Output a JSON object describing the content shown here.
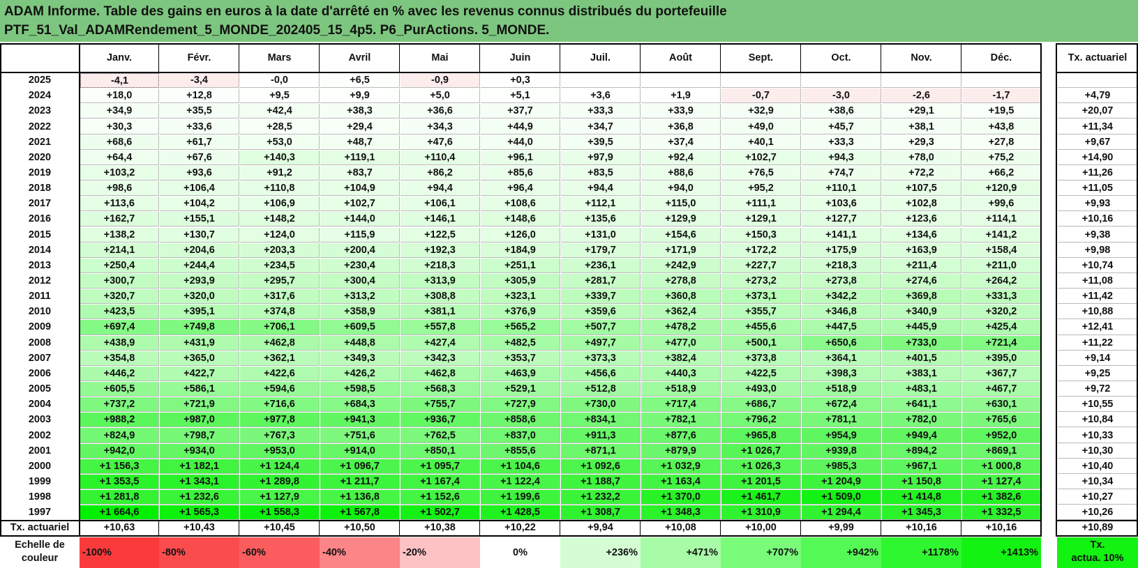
{
  "title_line1": "ADAM Informe. Table des gains en euros à la date d'arrêté en % avec les revenus connus distribués du portefeuille",
  "title_line2": "PTF_51_Val_ADAMRendement_5_MONDE_202405_15_4p5. P6_PurActions. 5_MONDE.",
  "months": [
    "Janv.",
    "Févr.",
    "Mars",
    "Avril",
    "Mai",
    "Juin",
    "Juil.",
    "Août",
    "Sept.",
    "Oct.",
    "Nov.",
    "Déc."
  ],
  "tx_header": "Tx. actuariel",
  "rows": [
    {
      "year": "2025",
      "values": [
        "-4,1",
        "-3,4",
        "-0,0",
        "+6,5",
        "-0,9",
        "+0,3",
        "",
        "",
        "",
        "",
        "",
        ""
      ],
      "tx": ""
    },
    {
      "year": "2024",
      "values": [
        "+18,0",
        "+12,8",
        "+9,5",
        "+9,9",
        "+5,0",
        "+5,1",
        "+3,6",
        "+1,9",
        "-0,7",
        "-3,0",
        "-2,6",
        "-1,7"
      ],
      "tx": "+4,79"
    },
    {
      "year": "2023",
      "values": [
        "+34,9",
        "+35,5",
        "+42,4",
        "+38,3",
        "+36,6",
        "+37,7",
        "+33,3",
        "+33,9",
        "+32,9",
        "+38,6",
        "+29,1",
        "+19,5"
      ],
      "tx": "+20,07"
    },
    {
      "year": "2022",
      "values": [
        "+30,3",
        "+33,6",
        "+28,5",
        "+29,4",
        "+34,3",
        "+44,9",
        "+34,7",
        "+36,8",
        "+49,0",
        "+45,7",
        "+38,1",
        "+43,8"
      ],
      "tx": "+11,34"
    },
    {
      "year": "2021",
      "values": [
        "+68,6",
        "+61,7",
        "+53,0",
        "+48,7",
        "+47,6",
        "+44,0",
        "+39,5",
        "+37,4",
        "+40,1",
        "+33,3",
        "+29,3",
        "+27,8"
      ],
      "tx": "+9,67"
    },
    {
      "year": "2020",
      "values": [
        "+64,4",
        "+67,6",
        "+140,3",
        "+119,1",
        "+110,4",
        "+96,1",
        "+97,9",
        "+92,4",
        "+102,7",
        "+94,3",
        "+78,0",
        "+75,2"
      ],
      "tx": "+14,90"
    },
    {
      "year": "2019",
      "values": [
        "+103,2",
        "+93,6",
        "+91,2",
        "+83,7",
        "+86,2",
        "+85,6",
        "+83,5",
        "+88,6",
        "+76,5",
        "+74,7",
        "+72,2",
        "+66,2"
      ],
      "tx": "+11,26"
    },
    {
      "year": "2018",
      "values": [
        "+98,6",
        "+106,4",
        "+110,8",
        "+104,9",
        "+94,4",
        "+96,4",
        "+94,4",
        "+94,0",
        "+95,2",
        "+110,1",
        "+107,5",
        "+120,9"
      ],
      "tx": "+11,05"
    },
    {
      "year": "2017",
      "values": [
        "+113,6",
        "+104,2",
        "+106,9",
        "+102,7",
        "+106,1",
        "+108,6",
        "+112,1",
        "+115,0",
        "+111,1",
        "+103,6",
        "+102,8",
        "+99,6"
      ],
      "tx": "+9,93"
    },
    {
      "year": "2016",
      "values": [
        "+162,7",
        "+155,1",
        "+148,2",
        "+144,0",
        "+146,1",
        "+148,6",
        "+135,6",
        "+129,9",
        "+129,1",
        "+127,7",
        "+123,6",
        "+114,1"
      ],
      "tx": "+10,16"
    },
    {
      "year": "2015",
      "values": [
        "+138,2",
        "+130,7",
        "+124,0",
        "+115,9",
        "+122,5",
        "+126,0",
        "+131,0",
        "+154,6",
        "+150,3",
        "+141,1",
        "+134,6",
        "+141,2"
      ],
      "tx": "+9,38"
    },
    {
      "year": "2014",
      "values": [
        "+214,1",
        "+204,6",
        "+203,3",
        "+200,4",
        "+192,3",
        "+184,9",
        "+179,7",
        "+171,9",
        "+172,2",
        "+175,9",
        "+163,9",
        "+158,4"
      ],
      "tx": "+9,98"
    },
    {
      "year": "2013",
      "values": [
        "+250,4",
        "+244,4",
        "+234,5",
        "+230,4",
        "+218,3",
        "+251,1",
        "+236,1",
        "+242,9",
        "+227,7",
        "+218,3",
        "+211,4",
        "+211,0"
      ],
      "tx": "+10,74"
    },
    {
      "year": "2012",
      "values": [
        "+300,7",
        "+293,9",
        "+295,7",
        "+300,4",
        "+313,9",
        "+305,9",
        "+281,7",
        "+278,8",
        "+273,2",
        "+273,8",
        "+274,6",
        "+264,2"
      ],
      "tx": "+11,08"
    },
    {
      "year": "2011",
      "values": [
        "+320,7",
        "+320,0",
        "+317,6",
        "+313,2",
        "+308,8",
        "+323,1",
        "+339,7",
        "+360,8",
        "+373,1",
        "+342,2",
        "+369,8",
        "+331,3"
      ],
      "tx": "+11,42"
    },
    {
      "year": "2010",
      "values": [
        "+423,5",
        "+395,1",
        "+374,8",
        "+358,9",
        "+381,1",
        "+376,9",
        "+359,6",
        "+362,4",
        "+355,7",
        "+346,8",
        "+340,9",
        "+320,2"
      ],
      "tx": "+10,88"
    },
    {
      "year": "2009",
      "values": [
        "+697,4",
        "+749,8",
        "+706,1",
        "+609,5",
        "+557,8",
        "+565,2",
        "+507,7",
        "+478,2",
        "+455,6",
        "+447,5",
        "+445,9",
        "+425,4"
      ],
      "tx": "+12,41"
    },
    {
      "year": "2008",
      "values": [
        "+438,9",
        "+431,9",
        "+462,8",
        "+448,8",
        "+427,4",
        "+482,5",
        "+497,7",
        "+477,0",
        "+500,1",
        "+650,6",
        "+733,0",
        "+721,4"
      ],
      "tx": "+11,22"
    },
    {
      "year": "2007",
      "values": [
        "+354,8",
        "+365,0",
        "+362,1",
        "+349,3",
        "+342,3",
        "+353,7",
        "+373,3",
        "+382,4",
        "+373,8",
        "+364,1",
        "+401,5",
        "+395,0"
      ],
      "tx": "+9,14"
    },
    {
      "year": "2006",
      "values": [
        "+446,2",
        "+422,7",
        "+422,6",
        "+426,2",
        "+462,8",
        "+463,9",
        "+456,6",
        "+440,3",
        "+422,5",
        "+398,3",
        "+383,1",
        "+367,7"
      ],
      "tx": "+9,25"
    },
    {
      "year": "2005",
      "values": [
        "+605,5",
        "+586,1",
        "+594,6",
        "+598,5",
        "+568,3",
        "+529,1",
        "+512,8",
        "+518,9",
        "+493,0",
        "+518,9",
        "+483,1",
        "+467,7"
      ],
      "tx": "+9,72"
    },
    {
      "year": "2004",
      "values": [
        "+737,2",
        "+721,9",
        "+716,6",
        "+684,3",
        "+755,7",
        "+727,9",
        "+730,0",
        "+717,4",
        "+686,7",
        "+672,4",
        "+641,1",
        "+630,1"
      ],
      "tx": "+10,55"
    },
    {
      "year": "2003",
      "values": [
        "+988,2",
        "+987,0",
        "+977,8",
        "+941,3",
        "+936,7",
        "+858,6",
        "+834,1",
        "+782,1",
        "+796,2",
        "+781,1",
        "+782,0",
        "+765,6"
      ],
      "tx": "+10,84"
    },
    {
      "year": "2002",
      "values": [
        "+824,9",
        "+798,7",
        "+767,3",
        "+751,6",
        "+762,5",
        "+837,0",
        "+911,3",
        "+877,6",
        "+965,8",
        "+954,9",
        "+949,4",
        "+952,0"
      ],
      "tx": "+10,33"
    },
    {
      "year": "2001",
      "values": [
        "+942,0",
        "+934,0",
        "+953,0",
        "+914,0",
        "+850,1",
        "+855,6",
        "+871,1",
        "+879,9",
        "+1 026,7",
        "+939,8",
        "+894,2",
        "+869,1"
      ],
      "tx": "+10,30"
    },
    {
      "year": "2000",
      "values": [
        "+1 156,3",
        "+1 182,1",
        "+1 124,4",
        "+1 096,7",
        "+1 095,7",
        "+1 104,6",
        "+1 092,6",
        "+1 032,9",
        "+1 026,3",
        "+985,3",
        "+967,1",
        "+1 000,8"
      ],
      "tx": "+10,40"
    },
    {
      "year": "1999",
      "values": [
        "+1 353,5",
        "+1 343,1",
        "+1 289,8",
        "+1 211,7",
        "+1 167,4",
        "+1 122,4",
        "+1 188,7",
        "+1 163,4",
        "+1 201,5",
        "+1 204,9",
        "+1 150,8",
        "+1 127,4"
      ],
      "tx": "+10,34"
    },
    {
      "year": "1998",
      "values": [
        "+1 281,8",
        "+1 232,6",
        "+1 127,9",
        "+1 136,8",
        "+1 152,6",
        "+1 199,6",
        "+1 232,2",
        "+1 370,0",
        "+1 461,7",
        "+1 509,0",
        "+1 414,8",
        "+1 382,6"
      ],
      "tx": "+10,27"
    },
    {
      "year": "1997",
      "values": [
        "+1 664,6",
        "+1 565,3",
        "+1 558,3",
        "+1 567,8",
        "+1 502,7",
        "+1 428,5",
        "+1 308,7",
        "+1 348,3",
        "+1 310,9",
        "+1 294,4",
        "+1 345,3",
        "+1 332,5"
      ],
      "tx": "+10,26"
    }
  ],
  "tx_row": {
    "label": "Tx. actuariel",
    "values": [
      "+10,63",
      "+10,43",
      "+10,45",
      "+10,50",
      "+10,38",
      "+10,22",
      "+9,94",
      "+10,08",
      "+10,00",
      "+9,99",
      "+10,16",
      "+10,16"
    ],
    "total": "+10,89"
  },
  "scale": {
    "label_line1": "Echelle de",
    "label_line2": "couleur",
    "steps": [
      {
        "text": "-100%",
        "color": "#fb3a3c"
      },
      {
        "text": "-80%",
        "color": "#fb4c4d"
      },
      {
        "text": "-60%",
        "color": "#fb5d5e"
      },
      {
        "text": "-40%",
        "color": "#fb8587"
      },
      {
        "text": "-20%",
        "color": "#fdc2c3"
      },
      {
        "text": "0%",
        "color": "#ffffff"
      },
      {
        "text": "+236%",
        "color": "#d4fdd4"
      },
      {
        "text": "+471%",
        "color": "#a8fca8"
      },
      {
        "text": "+707%",
        "color": "#7afb7a"
      },
      {
        "text": "+942%",
        "color": "#55f955"
      },
      {
        "text": "+1178%",
        "color": "#2ff72f"
      },
      {
        "text": "+1413%",
        "color": "#12f312"
      }
    ],
    "tx_line1": "Tx.",
    "tx_line2": "actua. 10%",
    "tx_color": "#12f312"
  },
  "colors": {
    "header_bg": "#7dc67f",
    "neg_light": "#fdecec",
    "white": "#ffffff",
    "max_green": "#00f000"
  }
}
